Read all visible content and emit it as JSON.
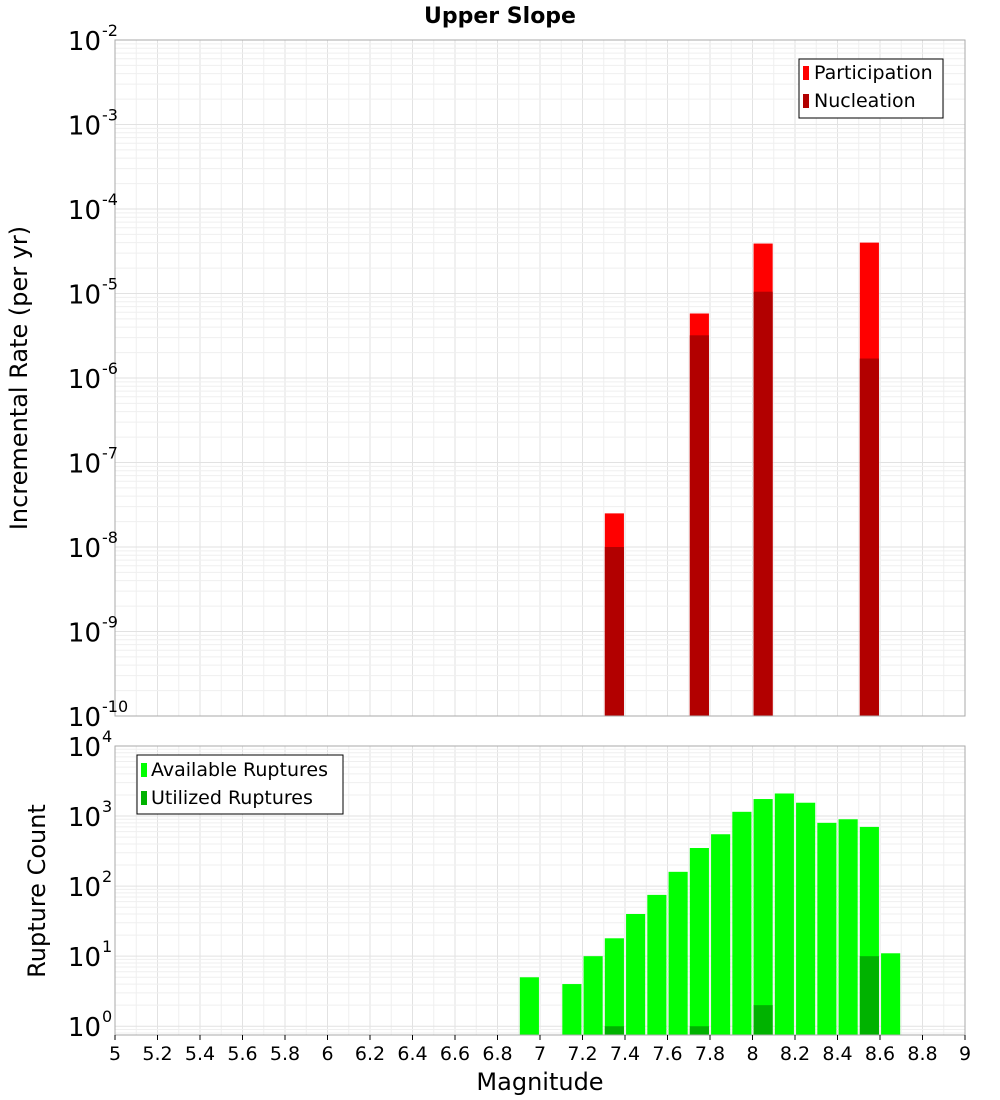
{
  "chart_data": [
    {
      "type": "bar",
      "title": "Upper Slope",
      "ylabel": "Incremental Rate (per yr)",
      "xlabel": "",
      "y_scale": "log",
      "ylim": [
        1e-10,
        0.01
      ],
      "xlim": [
        5,
        9
      ],
      "bin_width": 0.1,
      "grid": true,
      "legend_position": "top-right",
      "series": [
        {
          "name": "Participation",
          "color": "#ff0000",
          "x": [
            7.35,
            7.75,
            8.05,
            8.55
          ],
          "values": [
            2.5e-08,
            5.8e-06,
            3.9e-05,
            4e-05
          ]
        },
        {
          "name": "Nucleation",
          "color": "#b20000",
          "x": [
            7.35,
            7.75,
            8.05,
            8.55
          ],
          "values": [
            1e-08,
            3.2e-06,
            1.05e-05,
            1.7e-06
          ]
        }
      ],
      "y_ticks": [
        {
          "base": "10",
          "exp": "-10",
          "value": 1e-10
        },
        {
          "base": "10",
          "exp": "-9",
          "value": 1e-09
        },
        {
          "base": "10",
          "exp": "-8",
          "value": 1e-08
        },
        {
          "base": "10",
          "exp": "-7",
          "value": 1e-07
        },
        {
          "base": "10",
          "exp": "-6",
          "value": 1e-06
        },
        {
          "base": "10",
          "exp": "-5",
          "value": 1e-05
        },
        {
          "base": "10",
          "exp": "-4",
          "value": 0.0001
        },
        {
          "base": "10",
          "exp": "-3",
          "value": 0.001
        },
        {
          "base": "10",
          "exp": "-2",
          "value": 0.01
        }
      ]
    },
    {
      "type": "bar",
      "title": "",
      "ylabel": "Rupture Count",
      "xlabel": "Magnitude",
      "y_scale": "log",
      "ylim": [
        0.75,
        10000
      ],
      "xlim": [
        5,
        9
      ],
      "bin_width": 0.1,
      "grid": true,
      "legend_position": "top-left",
      "series": [
        {
          "name": "Available Ruptures",
          "color": "#00ff00",
          "x": [
            6.95,
            7.15,
            7.25,
            7.35,
            7.45,
            7.55,
            7.65,
            7.75,
            7.85,
            7.95,
            8.05,
            8.15,
            8.25,
            8.35,
            8.45,
            8.55,
            8.65
          ],
          "values": [
            5,
            4,
            10,
            18,
            40,
            75,
            160,
            350,
            550,
            1150,
            1750,
            2100,
            1550,
            800,
            900,
            700,
            11
          ]
        },
        {
          "name": "Utilized Ruptures",
          "color": "#00b200",
          "x": [
            7.35,
            7.75,
            8.05,
            8.55
          ],
          "values": [
            1,
            1,
            2,
            10
          ]
        }
      ],
      "y_ticks": [
        {
          "base": "10",
          "exp": "0",
          "value": 1
        },
        {
          "base": "10",
          "exp": "1",
          "value": 10
        },
        {
          "base": "10",
          "exp": "2",
          "value": 100
        },
        {
          "base": "10",
          "exp": "3",
          "value": 1000
        },
        {
          "base": "10",
          "exp": "4",
          "value": 10000
        }
      ],
      "x_ticks": [
        "5",
        "5.2",
        "5.4",
        "5.6",
        "5.8",
        "6",
        "6.2",
        "6.4",
        "6.6",
        "6.8",
        "7",
        "7.2",
        "7.4",
        "7.6",
        "7.8",
        "8",
        "8.2",
        "8.4",
        "8.6",
        "8.8",
        "9"
      ]
    }
  ]
}
